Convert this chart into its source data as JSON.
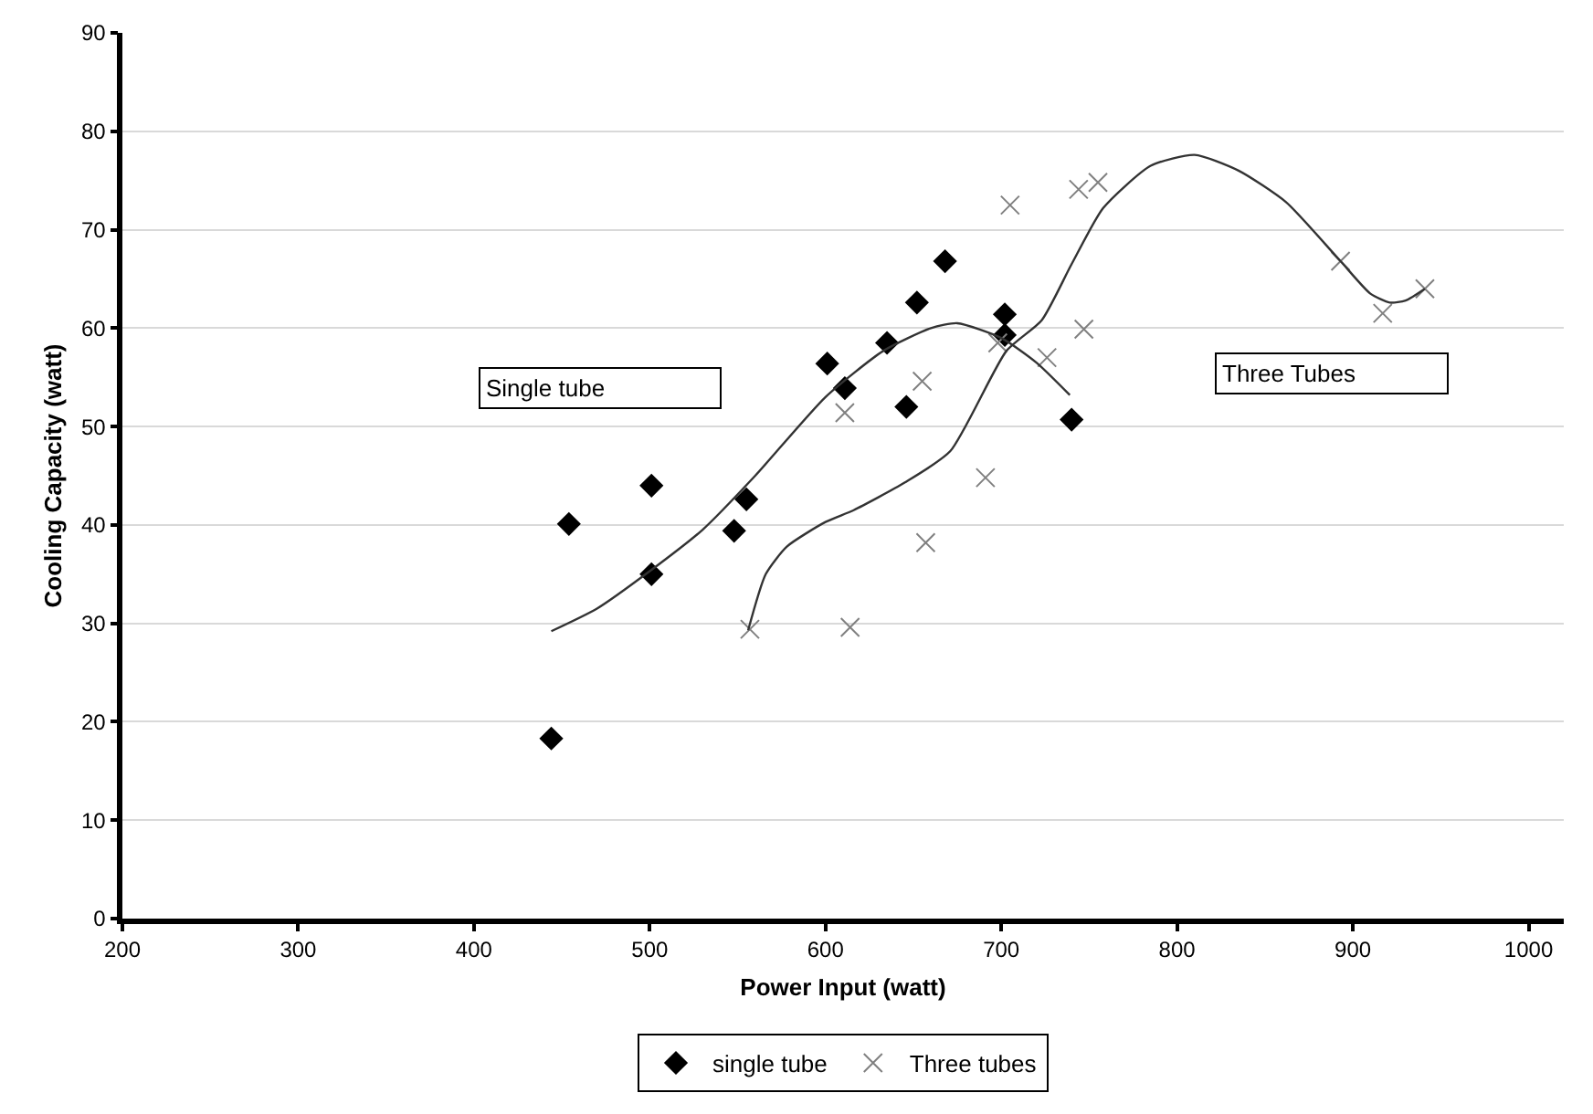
{
  "chart_data": {
    "type": "scatter",
    "xlabel": "Power Input (watt)",
    "ylabel": "Cooling Capacity (watt)",
    "xlim": [
      200,
      1020
    ],
    "xticks": [
      200,
      300,
      400,
      500,
      600,
      700,
      800,
      900,
      1000
    ],
    "ylim": [
      0,
      90
    ],
    "yticks": [
      0,
      10,
      20,
      30,
      40,
      50,
      60,
      70,
      80,
      90
    ],
    "grid": "y",
    "legend": "bottom",
    "annotations": [
      "Single tube",
      "Three Tubes"
    ],
    "series": [
      {
        "name": "single tube",
        "marker": "diamond",
        "color": "#000000",
        "x": [
          444,
          454,
          501,
          501,
          548,
          555,
          601,
          611,
          635,
          646,
          652,
          668,
          702,
          702,
          740
        ],
        "values": [
          18.3,
          40.1,
          44.0,
          35.0,
          39.4,
          42.6,
          56.4,
          53.9,
          58.5,
          52.0,
          62.6,
          66.8,
          61.4,
          59.3,
          50.7
        ]
      },
      {
        "name": "Three tubes",
        "marker": "cross",
        "color": "#808080",
        "x": [
          557,
          614,
          611,
          655,
          657,
          691,
          705,
          698,
          726,
          747,
          744,
          755,
          893,
          917,
          941
        ],
        "values": [
          29.4,
          29.6,
          51.4,
          54.6,
          38.2,
          44.8,
          72.5,
          58.5,
          57.0,
          59.9,
          74.1,
          74.8,
          66.8,
          61.5,
          64.0
        ]
      },
      {
        "type": "line",
        "marker": "none",
        "color": "#333333",
        "x": [
          444,
          470,
          500,
          530,
          560,
          600,
          633,
          660,
          675,
          700,
          720,
          739
        ],
        "values": [
          29.2,
          31.5,
          35.3,
          39.5,
          45.0,
          53.0,
          57.7,
          60.0,
          60.5,
          59.0,
          56.5,
          53.2
        ]
      },
      {
        "type": "line",
        "marker": "none",
        "color": "#333333",
        "x": [
          556,
          566,
          578,
          600,
          616,
          645,
          671,
          703,
          723,
          740,
          758,
          785,
          810,
          835,
          862,
          893,
          910,
          921,
          930,
          941
        ],
        "values": [
          29.3,
          35.0,
          37.8,
          40.3,
          41.5,
          44.3,
          47.5,
          57.7,
          60.8,
          66.5,
          72.2,
          76.5,
          77.6,
          76.0,
          72.8,
          66.8,
          63.5,
          62.6,
          62.8,
          64.0
        ]
      }
    ]
  }
}
